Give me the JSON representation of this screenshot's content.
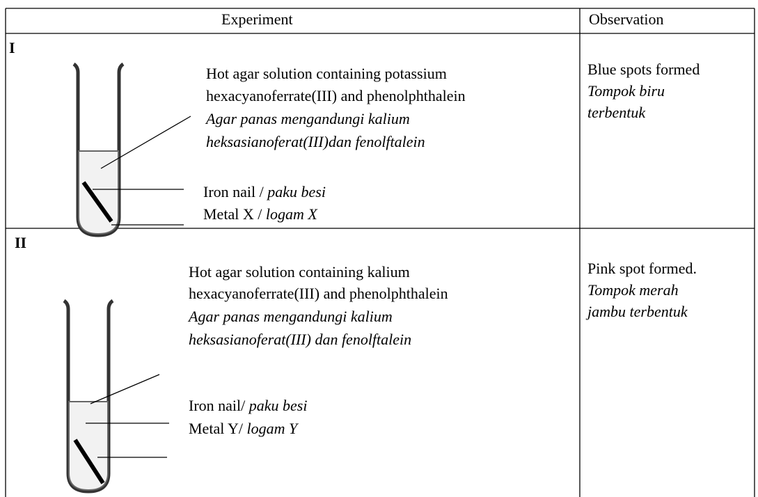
{
  "table": {
    "header": [
      "Experiment",
      "Observation"
    ],
    "rows": [
      {
        "label": "I",
        "experiment": {
          "solution_en": [
            "Hot agar solution containing potassium",
            "hexacyanoferrate(III) and phenolphthalein"
          ],
          "solution_ms": [
            "Agar panas mengandungi kalium",
            "heksasianoferat(III)dan fenolftalein"
          ],
          "nail_en": "Iron nail / ",
          "nail_ms": "paku besi",
          "metal_en": "Metal X / ",
          "metal_ms": "logam X"
        },
        "observation": {
          "en": "Blue spots formed",
          "ms": [
            "Tompok biru",
            "terbentuk"
          ]
        }
      },
      {
        "label": "II",
        "experiment": {
          "solution_en": [
            "Hot agar solution containing kalium",
            "hexacyanoferrate(III) and phenolphthalein"
          ],
          "solution_ms": [
            "Agar panas mengandungi kalium",
            "heksasianoferat(III) dan fenolftalein"
          ],
          "nail_en": "Iron nail/ ",
          "nail_ms": "paku besi",
          "metal_en": "Metal Y/ ",
          "metal_ms": "logam Y"
        },
        "observation": {
          "en": "Pink spot formed.",
          "ms": [
            "Tompok merah",
            "jambu terbentuk"
          ]
        }
      }
    ]
  }
}
